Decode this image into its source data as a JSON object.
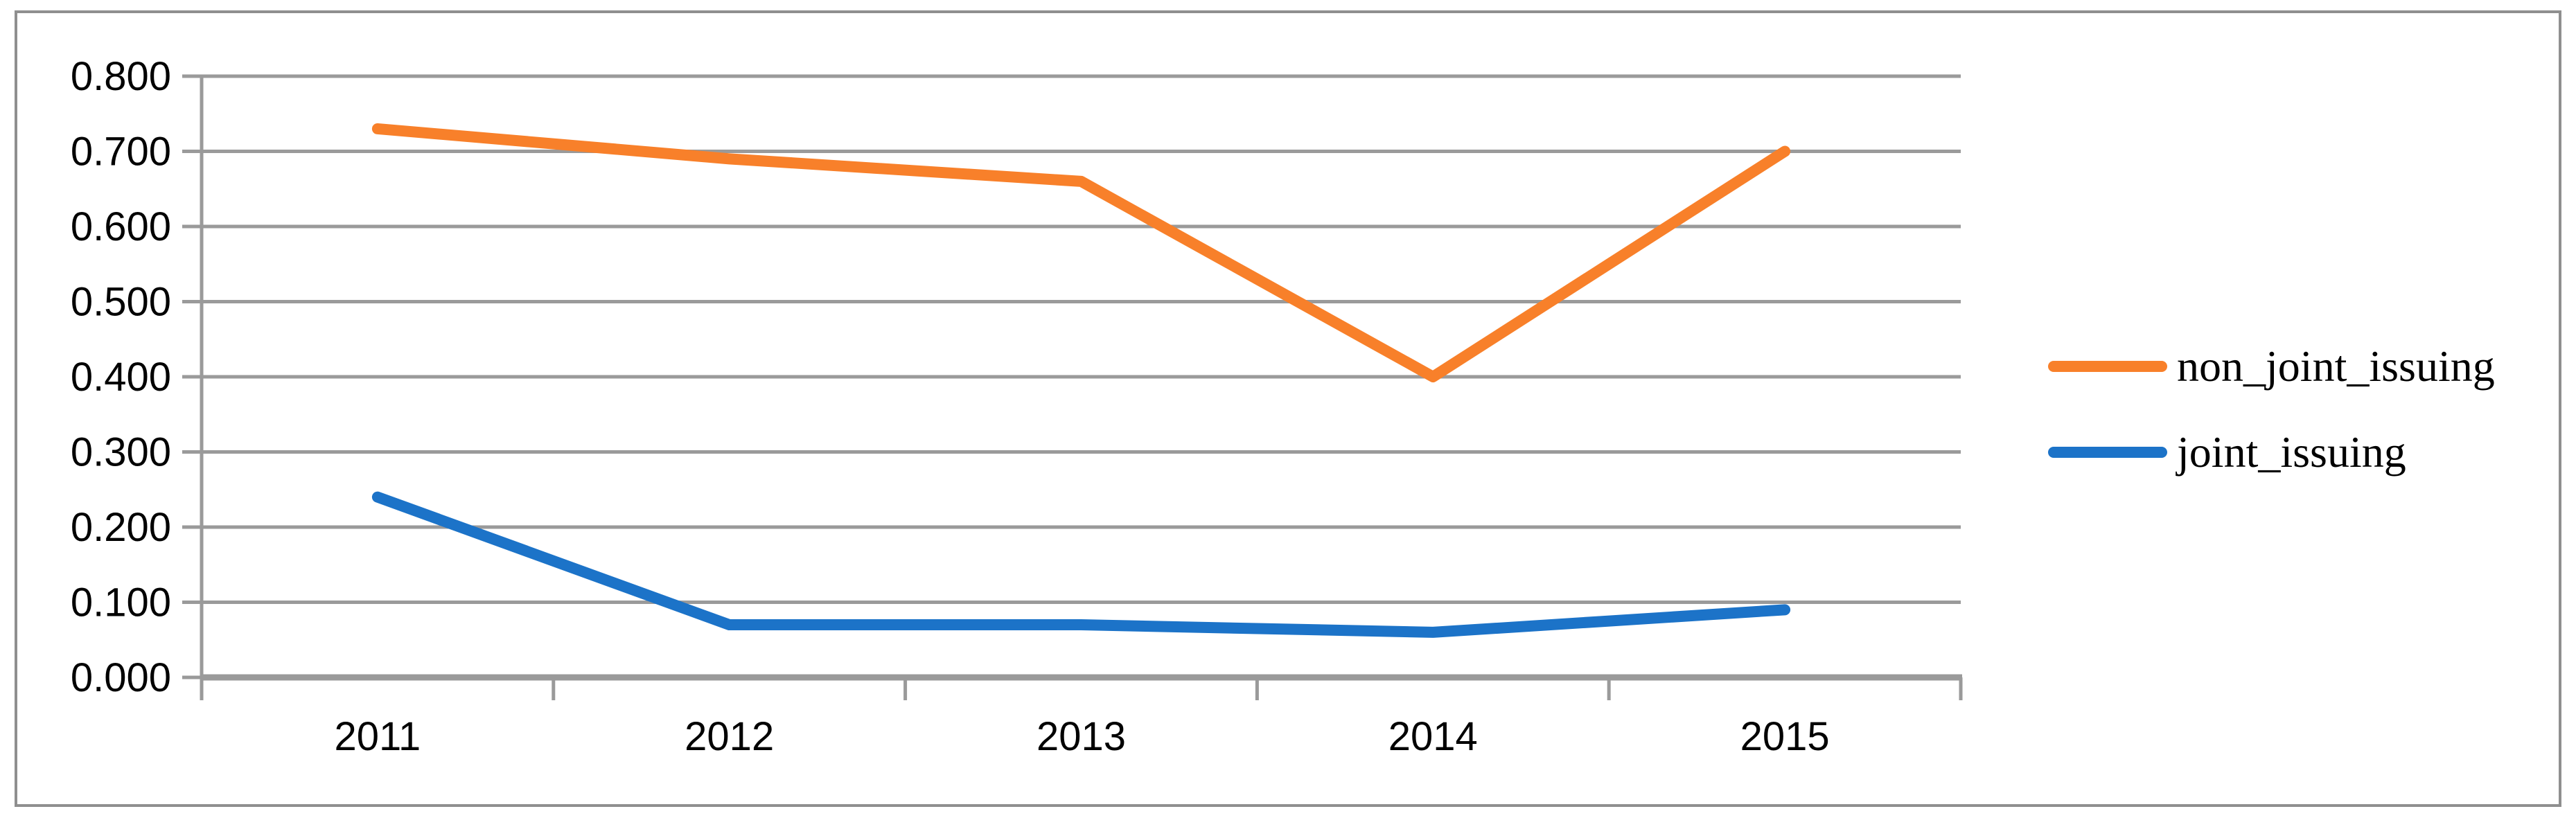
{
  "chart_data": {
    "type": "line",
    "title": "",
    "xlabel": "",
    "ylabel": "",
    "categories": [
      "2011",
      "2012",
      "2013",
      "2014",
      "2015"
    ],
    "series": [
      {
        "name": "non_joint_issuing",
        "color": "#F8802A",
        "values": [
          0.73,
          0.69,
          0.66,
          0.4,
          0.7
        ]
      },
      {
        "name": "joint_issuing",
        "color": "#1C73C8",
        "values": [
          0.24,
          0.07,
          0.07,
          0.06,
          0.09
        ]
      }
    ],
    "ylim": [
      0,
      0.8
    ],
    "y_tick_step": 0.1,
    "y_tick_decimals": 3,
    "y_tick_labels": [
      "0.000",
      "0.100",
      "0.200",
      "0.300",
      "0.400",
      "0.500",
      "0.600",
      "0.700",
      "0.800"
    ],
    "gridlines": "horizontal",
    "legend_position": "right"
  },
  "styles": {
    "background": "#FFFFFF",
    "gridline_color": "#9A9A9A",
    "axis_color": "#8F8F8F",
    "border_color": "#8F8F8F",
    "text_color": "#000000"
  }
}
